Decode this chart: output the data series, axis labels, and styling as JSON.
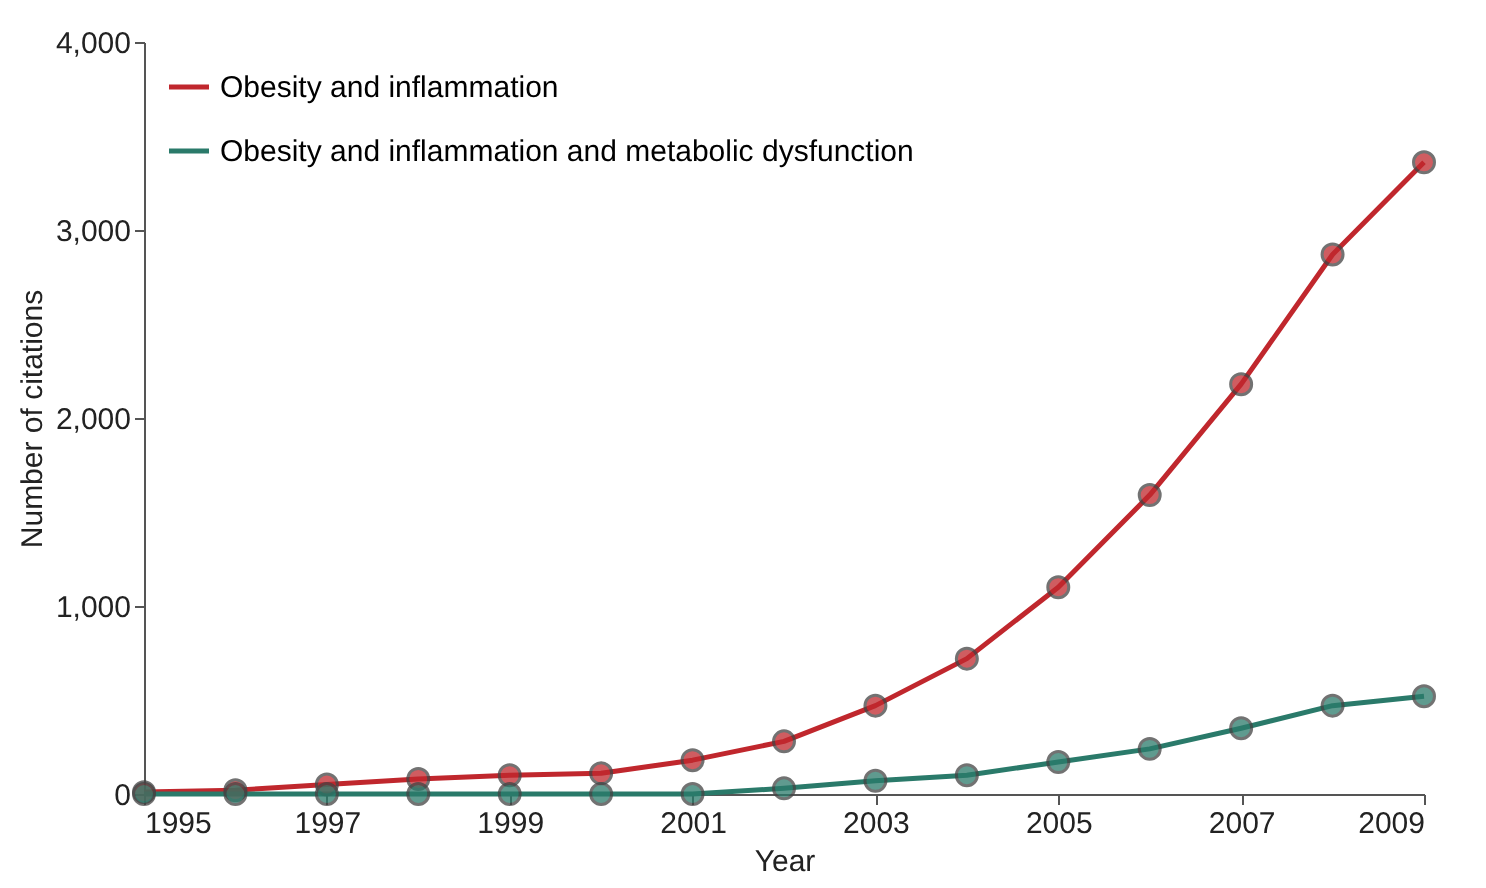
{
  "chart_data": {
    "type": "line",
    "xlabel": "Year",
    "ylabel": "Number of citations",
    "x": [
      1995,
      1996,
      1997,
      1998,
      1999,
      2000,
      2001,
      2002,
      2003,
      2004,
      2005,
      2006,
      2007,
      2008,
      2009
    ],
    "series": [
      {
        "name": "Obesity and inflammation",
        "color": "#c0272d",
        "values": [
          10,
          20,
          50,
          80,
          100,
          110,
          180,
          280,
          470,
          720,
          1100,
          1590,
          2180,
          2870,
          3360
        ]
      },
      {
        "name": "Obesity and inflammation and metabolic dysfunction",
        "color": "#2a7a6a",
        "values": [
          0,
          0,
          0,
          0,
          0,
          0,
          0,
          30,
          70,
          100,
          170,
          240,
          350,
          470,
          520
        ]
      }
    ],
    "xlim": [
      1995,
      2009
    ],
    "xticks": [
      1995,
      1997,
      1999,
      2001,
      2003,
      2005,
      2007,
      2009
    ],
    "ylim": [
      0,
      4000
    ],
    "yticks": [
      {
        "value": 0,
        "label": "0"
      },
      {
        "value": 1000,
        "label": "1,000"
      },
      {
        "value": 2000,
        "label": "2,000"
      },
      {
        "value": 3000,
        "label": "3,000"
      },
      {
        "value": 4000,
        "label": "4,000"
      }
    ],
    "grid": false,
    "legend": "top left",
    "marker": "circle",
    "line_style": "solid"
  }
}
